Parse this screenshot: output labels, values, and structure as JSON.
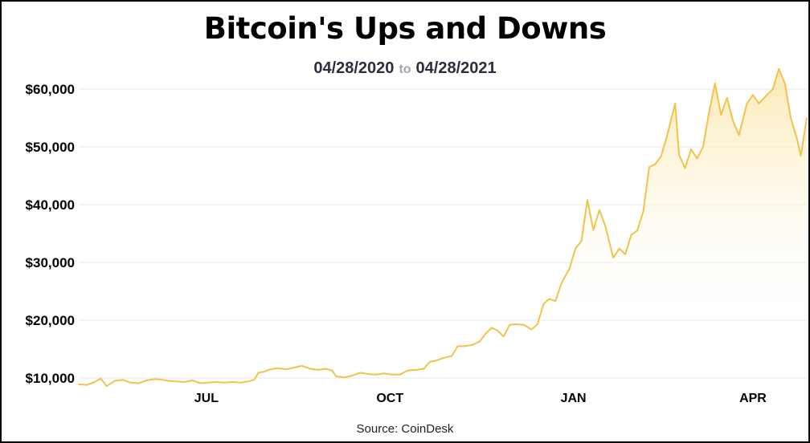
{
  "chart_data": {
    "type": "area",
    "title": "Bitcoin's Ups and Downs",
    "subtitle": {
      "start": "04/28/2020",
      "connector": "to",
      "end": "04/28/2021"
    },
    "source": "Source: CoinDesk",
    "xlabel": "",
    "ylabel": "",
    "xlim": [
      "2020-04-28",
      "2021-04-28"
    ],
    "ylim": [
      10000,
      60000
    ],
    "grid": true,
    "y_ticks": [
      {
        "value": 10000,
        "label": "$10,000"
      },
      {
        "value": 20000,
        "label": "$20,000"
      },
      {
        "value": 30000,
        "label": "$30,000"
      },
      {
        "value": 40000,
        "label": "$40,000"
      },
      {
        "value": 50000,
        "label": "$50,000"
      },
      {
        "value": 60000,
        "label": "$60,000"
      }
    ],
    "x_ticks": [
      {
        "date": "2020-07-01",
        "label": "JUL"
      },
      {
        "date": "2020-10-01",
        "label": "OCT"
      },
      {
        "date": "2021-01-01",
        "label": "JAN"
      },
      {
        "date": "2021-04-01",
        "label": "APR"
      }
    ],
    "colors": {
      "line": "#f0c44a",
      "fill_top": "#fbe7ad",
      "fill_bottom": "#ffffff",
      "grid": "#e8e8e8",
      "border": "#000000"
    },
    "series": [
      {
        "x": [
          "2020-04-28",
          "2020-05-02",
          "2020-05-06",
          "2020-05-09",
          "2020-05-12",
          "2020-05-16",
          "2020-05-20",
          "2020-05-24",
          "2020-05-28",
          "2020-06-01",
          "2020-06-05",
          "2020-06-09",
          "2020-06-12",
          "2020-06-16",
          "2020-06-20",
          "2020-06-24",
          "2020-06-28",
          "2020-07-02",
          "2020-07-06",
          "2020-07-10",
          "2020-07-14",
          "2020-07-18",
          "2020-07-22",
          "2020-07-25",
          "2020-07-27",
          "2020-07-30",
          "2020-08-02",
          "2020-08-06",
          "2020-08-10",
          "2020-08-14",
          "2020-08-18",
          "2020-08-22",
          "2020-08-26",
          "2020-08-30",
          "2020-09-02",
          "2020-09-04",
          "2020-09-08",
          "2020-09-12",
          "2020-09-16",
          "2020-09-20",
          "2020-09-24",
          "2020-09-28",
          "2020-10-02",
          "2020-10-06",
          "2020-10-10",
          "2020-10-14",
          "2020-10-18",
          "2020-10-21",
          "2020-10-24",
          "2020-10-28",
          "2020-11-01",
          "2020-11-04",
          "2020-11-07",
          "2020-11-11",
          "2020-11-15",
          "2020-11-18",
          "2020-11-21",
          "2020-11-24",
          "2020-11-27",
          "2020-11-30",
          "2020-12-03",
          "2020-12-07",
          "2020-12-11",
          "2020-12-14",
          "2020-12-17",
          "2020-12-20",
          "2020-12-23",
          "2020-12-26",
          "2020-12-30",
          "2021-01-02",
          "2021-01-05",
          "2021-01-08",
          "2021-01-11",
          "2021-01-14",
          "2021-01-17",
          "2021-01-21",
          "2021-01-24",
          "2021-01-27",
          "2021-01-30",
          "2021-02-02",
          "2021-02-05",
          "2021-02-08",
          "2021-02-11",
          "2021-02-14",
          "2021-02-17",
          "2021-02-21",
          "2021-02-23",
          "2021-02-26",
          "2021-03-01",
          "2021-03-04",
          "2021-03-07",
          "2021-03-10",
          "2021-03-13",
          "2021-03-16",
          "2021-03-19",
          "2021-03-22",
          "2021-03-25",
          "2021-03-29",
          "2021-04-01",
          "2021-04-04",
          "2021-04-08",
          "2021-04-11",
          "2021-04-14",
          "2021-04-17",
          "2021-04-20",
          "2021-04-23",
          "2021-04-25",
          "2021-04-28"
        ],
        "y": [
          8900,
          8800,
          9300,
          9900,
          8600,
          9500,
          9700,
          9200,
          9100,
          9600,
          9800,
          9700,
          9500,
          9400,
          9300,
          9600,
          9100,
          9200,
          9300,
          9200,
          9300,
          9200,
          9400,
          9700,
          10900,
          11100,
          11500,
          11700,
          11500,
          11800,
          12100,
          11600,
          11400,
          11600,
          11300,
          10300,
          10100,
          10400,
          10900,
          10700,
          10600,
          10800,
          10600,
          10600,
          11300,
          11400,
          11600,
          12800,
          13000,
          13500,
          13800,
          15500,
          15500,
          15700,
          16300,
          17700,
          18700,
          18200,
          17200,
          19200,
          19300,
          19200,
          18400,
          19300,
          22800,
          23700,
          23300,
          26400,
          28900,
          32400,
          33700,
          40800,
          35600,
          39100,
          36300,
          30800,
          32400,
          31400,
          34800,
          35500,
          38800,
          46500,
          47000,
          48400,
          52000,
          57500,
          48600,
          46300,
          49600,
          48000,
          50000,
          56000,
          61000,
          55500,
          58500,
          54500,
          52000,
          57500,
          59000,
          57500,
          59000,
          60000,
          63500,
          61000,
          55000,
          51500,
          48500,
          55000
        ]
      }
    ]
  }
}
